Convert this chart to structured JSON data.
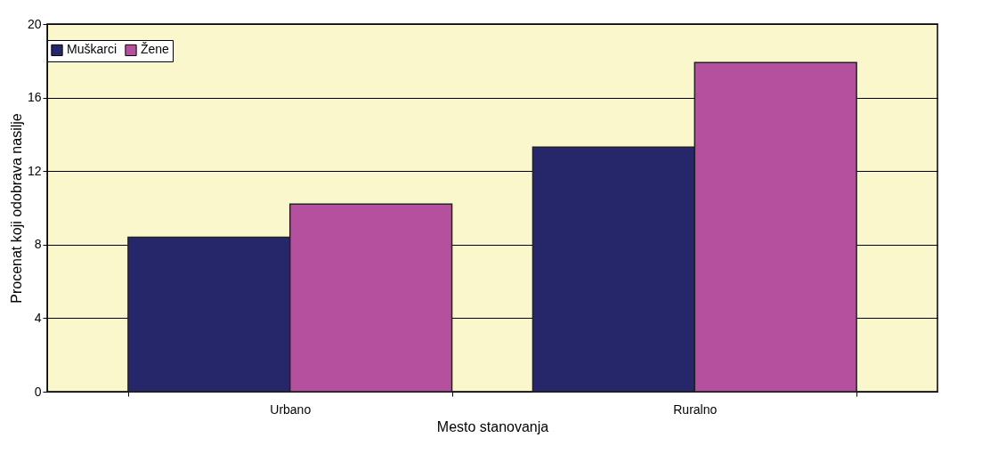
{
  "chart_data": {
    "type": "bar",
    "xlabel": "Mesto stanovanja",
    "ylabel": "Procenat koji odobrava nasilje",
    "categories": [
      "Urbano",
      "Ruralno"
    ],
    "series": [
      {
        "name": "Muškarci",
        "color": "#26276b",
        "values": [
          8.4,
          13.3
        ]
      },
      {
        "name": "Žene",
        "color": "#b5509e",
        "values": [
          10.2,
          17.9
        ]
      }
    ],
    "ylim": [
      0,
      20
    ],
    "yticks": [
      0,
      4,
      8,
      12,
      16,
      20
    ],
    "grid": "y",
    "legend": "top"
  }
}
